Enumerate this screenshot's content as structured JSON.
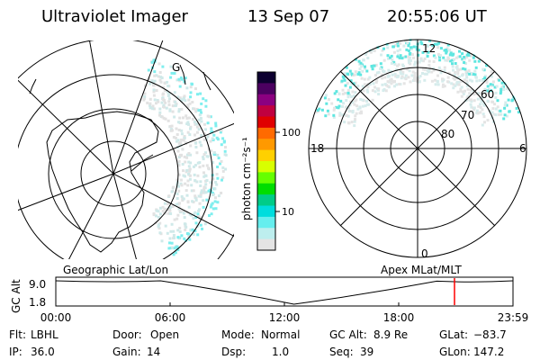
{
  "header": {
    "instrument": "Ultraviolet Imager",
    "date": "13 Sep 07",
    "time": "20:55:06 UT"
  },
  "colorbar": {
    "unit_label": "photon cm⁻²s⁻¹",
    "ticks": [
      "100",
      "10"
    ],
    "colors": [
      "#0d0030",
      "#4b0060",
      "#8b0080",
      "#c00040",
      "#e00000",
      "#ff6a00",
      "#ff9900",
      "#ffd000",
      "#d8ff00",
      "#66ff00",
      "#00dd00",
      "#00cc88",
      "#00dddd",
      "#66eeee",
      "#bdeeee",
      "#e4e4e4"
    ]
  },
  "left_panel": {
    "label": "Geographic Lat/Lon",
    "marker": "G"
  },
  "right_panel": {
    "label": "Apex MLat/MLT",
    "mlt_labels": {
      "top": "12",
      "left": "18",
      "right": "6",
      "bottom": "0"
    },
    "lat_labels": [
      "60",
      "70",
      "80"
    ]
  },
  "timeline": {
    "axis_label": "GC Alt",
    "y_max": "9.0",
    "y_min": "1.8",
    "x_ticks": [
      "00:00",
      "06:00",
      "12:00",
      "18:00",
      "23:59"
    ],
    "current_time_fraction": 0.872,
    "marker_color": "#ff0000",
    "altitude_profile": [
      {
        "hour": 0,
        "alt_re": 9.0
      },
      {
        "hour": 5.5,
        "alt_re": 9.0
      },
      {
        "hour": 12.5,
        "alt_re": 1.8
      },
      {
        "hour": 20,
        "alt_re": 8.9
      },
      {
        "hour": 24,
        "alt_re": 9.0
      }
    ]
  },
  "status": {
    "row1": [
      {
        "key": "Flt:",
        "value": "LBHL"
      },
      {
        "key": "Door:",
        "value": "Open"
      },
      {
        "key": "Mode:",
        "value": "Normal"
      },
      {
        "key": "GC Alt:",
        "value": "8.9 Re"
      },
      {
        "key": "GLat:",
        "value": "−83.7"
      }
    ],
    "row2": [
      {
        "key": "IP:",
        "value": "36.0"
      },
      {
        "key": "Gain:",
        "value": "14"
      },
      {
        "key": "Dsp:",
        "value": "1.0"
      },
      {
        "key": "Seq:",
        "value": "39"
      },
      {
        "key": "GLon:",
        "value": "147.2"
      }
    ]
  }
}
